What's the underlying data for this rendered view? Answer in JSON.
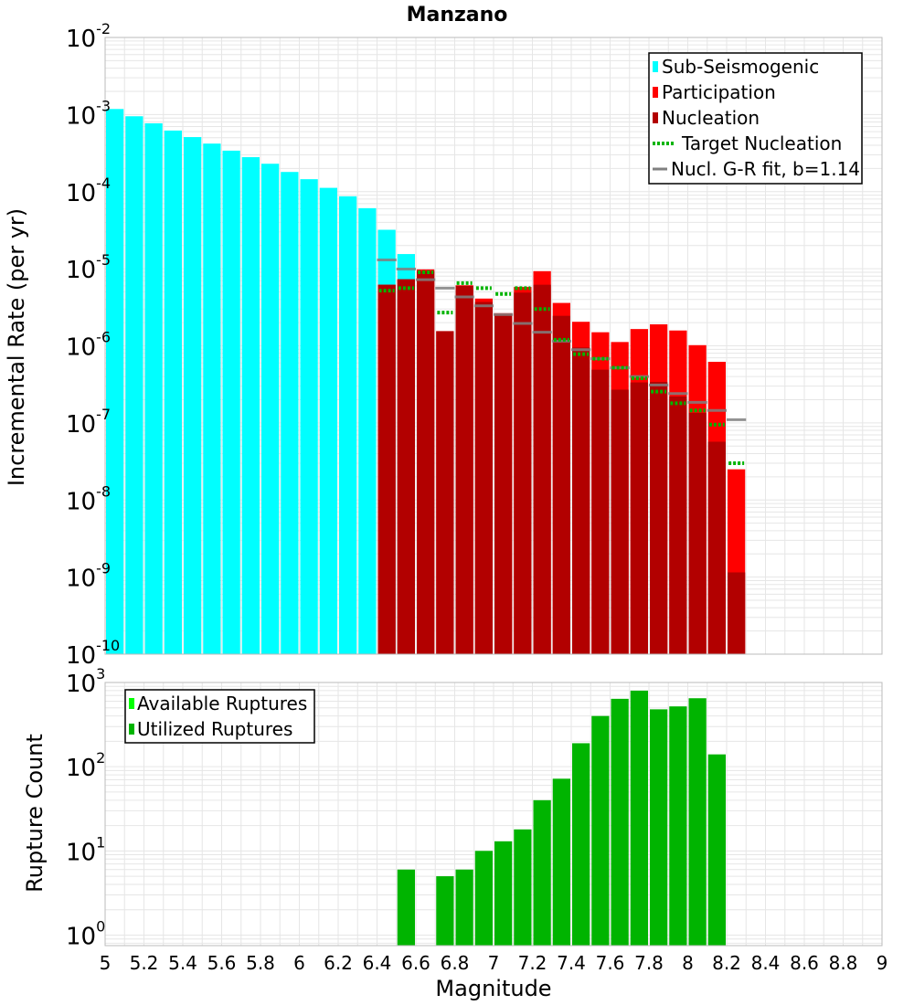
{
  "colors": {
    "sub_seismogenic": "#00ffff",
    "participation": "#ff0000",
    "nucleation": "#b20000",
    "target_nucleation": "#00b400",
    "gr_fit": "#808080",
    "available_ruptures": "#00ff00",
    "utilized_ruptures": "#00b400",
    "grid": "#e6e6e6",
    "axis_frame": "#bbbbbb"
  },
  "chart_data": [
    {
      "type": "bar",
      "title": "Manzano",
      "ylabel": "Incremental Rate (per yr)",
      "xlabel": "",
      "y_scale": "log",
      "ylim": [
        1e-10,
        0.01
      ],
      "xlim": [
        5,
        9
      ],
      "y_tick_exponents": [
        -10,
        -9,
        -8,
        -7,
        -6,
        -5,
        -4,
        -3,
        -2
      ],
      "y_tick_base": "10",
      "grid": true,
      "legend": {
        "placement": "top-right",
        "entries": [
          {
            "label": "Sub-Seismogenic",
            "style": "bar",
            "color": "#00ffff"
          },
          {
            "label": "Participation",
            "style": "bar",
            "color": "#ff0000"
          },
          {
            "label": "Nucleation",
            "style": "bar",
            "color": "#b20000"
          },
          {
            "label": "Target Nucleation",
            "style": "dotted",
            "color": "#00b400"
          },
          {
            "label": "Nucl. G-R fit, b=1.14",
            "style": "line",
            "color": "#808080"
          }
        ]
      },
      "bin_width": 0.1,
      "series": [
        {
          "name": "Sub-Seismogenic",
          "x": [
            5.05,
            5.15,
            5.25,
            5.35,
            5.45,
            5.55,
            5.65,
            5.75,
            5.85,
            5.95,
            6.05,
            6.15,
            6.25,
            6.35,
            6.45,
            6.55
          ],
          "values": [
            0.00118,
            0.00095,
            0.00077,
            0.00062,
            0.00051,
            0.00042,
            0.00034,
            0.00028,
            0.00023,
            0.00018,
            0.000145,
            0.000112,
            8.7e-05,
            6.1e-05,
            3.2e-05,
            1.55e-05
          ]
        },
        {
          "name": "Participation",
          "x": [
            6.45,
            6.55,
            6.65,
            6.75,
            6.85,
            6.95,
            7.05,
            7.15,
            7.25,
            7.35,
            7.45,
            7.55,
            7.65,
            7.75,
            7.85,
            7.95,
            8.05,
            8.15,
            8.25
          ],
          "values": [
            6.2e-06,
            7.3e-06,
            9.8e-06,
            1.55e-06,
            6.1e-06,
            4.1e-06,
            2.65e-06,
            5.8e-06,
            9.3e-06,
            3.6e-06,
            2.05e-06,
            1.5e-06,
            1.12e-06,
            1.65e-06,
            1.9e-06,
            1.58e-06,
            1.02e-06,
            6.2e-07,
            2.5e-08
          ]
        },
        {
          "name": "Nucleation",
          "x": [
            6.45,
            6.55,
            6.65,
            6.75,
            6.85,
            6.95,
            7.05,
            7.15,
            7.25,
            7.35,
            7.45,
            7.55,
            7.65,
            7.75,
            7.85,
            7.95,
            8.05,
            8.15,
            8.25
          ],
          "values": [
            6.2e-06,
            7.3e-06,
            9.3e-06,
            1.55e-06,
            6e-06,
            3.7e-06,
            2.55e-06,
            4.9e-06,
            6.2e-06,
            2.45e-06,
            9.5e-07,
            4.9e-07,
            2.7e-07,
            3.35e-07,
            3.4e-07,
            2.2e-07,
            1.35e-07,
            5.7e-08,
            1.15e-09
          ]
        },
        {
          "name": "Target Nucleation",
          "x": [
            6.45,
            6.55,
            6.65,
            6.75,
            6.85,
            6.95,
            7.05,
            7.15,
            7.25,
            7.35,
            7.45,
            7.55,
            7.65,
            7.75,
            7.85,
            7.95,
            8.05,
            8.15,
            8.25
          ],
          "values": [
            5.2e-06,
            5.6e-06,
            9e-06,
            2.7e-06,
            6.5e-06,
            5.6e-06,
            4.7e-06,
            5.6e-06,
            3e-06,
            1.2e-06,
            7.8e-07,
            6.8e-07,
            5.2e-07,
            3.8e-07,
            2.55e-07,
            1.8e-07,
            1.45e-07,
            9.5e-08,
            3e-08
          ]
        },
        {
          "name": "Nucl. G-R fit, b=1.14",
          "x": [
            6.45,
            6.55,
            6.65,
            6.75,
            6.85,
            6.95,
            7.05,
            7.15,
            7.25,
            7.35,
            7.45,
            7.55,
            7.65,
            7.75,
            7.85,
            7.95,
            8.05,
            8.15,
            8.25
          ],
          "values": [
            1.3e-05,
            9.9e-06,
            7.2e-06,
            5.6e-06,
            4.3e-06,
            3.3e-06,
            2.55e-06,
            1.95e-06,
            1.5e-06,
            1.15e-06,
            8.9e-07,
            6.8e-07,
            5.2e-07,
            4e-07,
            3.1e-07,
            2.4e-07,
            1.85e-07,
            1.45e-07,
            1.1e-07
          ]
        }
      ]
    },
    {
      "type": "bar",
      "title": "",
      "xlabel": "Magnitude",
      "ylabel": "Rupture Count",
      "y_scale": "log",
      "ylim": [
        0.75,
        1000
      ],
      "xlim": [
        5,
        9
      ],
      "y_tick_exponents": [
        0,
        1,
        2,
        3
      ],
      "y_tick_base": "10",
      "x_ticks": [
        5,
        5.2,
        5.4,
        5.6,
        5.8,
        6,
        6.2,
        6.4,
        6.6,
        6.8,
        7,
        7.2,
        7.4,
        7.6,
        7.8,
        8,
        8.2,
        8.4,
        8.6,
        8.8,
        9
      ],
      "x_tick_labels": [
        "5",
        "5.2",
        "5.4",
        "5.6",
        "5.8",
        "6",
        "6.2",
        "6.4",
        "6.6",
        "6.8",
        "7",
        "7.2",
        "7.4",
        "7.6",
        "7.8",
        "8",
        "8.2",
        "8.4",
        "8.6",
        "8.8",
        "9"
      ],
      "grid": true,
      "legend": {
        "placement": "top-left",
        "entries": [
          {
            "label": "Available Ruptures",
            "style": "bar",
            "color": "#00ff00"
          },
          {
            "label": "Utilized Ruptures",
            "style": "bar",
            "color": "#00b400"
          }
        ]
      },
      "bin_width": 0.1,
      "series": [
        {
          "name": "Utilized Ruptures",
          "x": [
            6.55,
            6.75,
            6.85,
            6.95,
            7.05,
            7.15,
            7.25,
            7.35,
            7.45,
            7.55,
            7.65,
            7.75,
            7.85,
            7.95,
            8.05,
            8.15
          ],
          "values": [
            6,
            5,
            6,
            10,
            13,
            18,
            40,
            72,
            190,
            400,
            640,
            800,
            480,
            520,
            650,
            140
          ]
        }
      ]
    }
  ]
}
